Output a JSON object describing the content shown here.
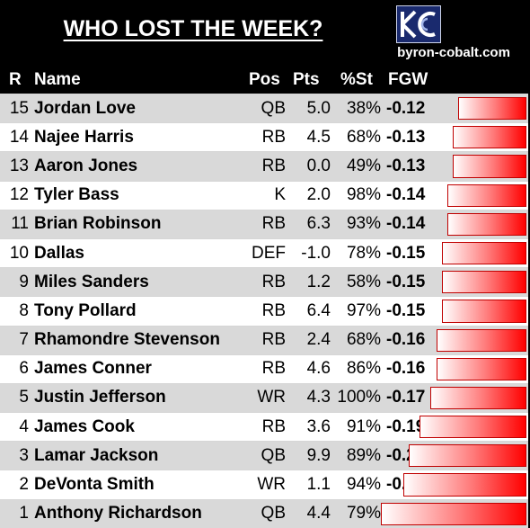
{
  "title": "WHO LOST THE WEEK?",
  "site": "byron-cobalt.com",
  "logo_icon": "kc-monogram-icon",
  "colors": {
    "bar_start": "#ffffff",
    "bar_end": "#ff0000",
    "bar_border": "#c00000"
  },
  "headers": {
    "rank": "R",
    "name": "Name",
    "pos": "Pos",
    "pts": "Pts",
    "pct": "%St",
    "fgw": "FGW"
  },
  "chart_data": {
    "type": "table",
    "columns": [
      "R",
      "Name",
      "Pos",
      "Pts",
      "%St",
      "FGW"
    ],
    "rows": [
      {
        "rank": "15",
        "name": "Jordan Love",
        "pos": "QB",
        "pts": "5.0",
        "pct": "38%",
        "fgw": "-0.12",
        "value": -0.12
      },
      {
        "rank": "14",
        "name": "Najee Harris",
        "pos": "RB",
        "pts": "4.5",
        "pct": "68%",
        "fgw": "-0.13",
        "value": -0.13
      },
      {
        "rank": "13",
        "name": "Aaron Jones",
        "pos": "RB",
        "pts": "0.0",
        "pct": "49%",
        "fgw": "-0.13",
        "value": -0.13
      },
      {
        "rank": "12",
        "name": "Tyler Bass",
        "pos": "K",
        "pts": "2.0",
        "pct": "98%",
        "fgw": "-0.14",
        "value": -0.14
      },
      {
        "rank": "11",
        "name": "Brian Robinson",
        "pos": "RB",
        "pts": "6.3",
        "pct": "93%",
        "fgw": "-0.14",
        "value": -0.14
      },
      {
        "rank": "10",
        "name": "Dallas",
        "pos": "DEF",
        "pts": "-1.0",
        "pct": "78%",
        "fgw": "-0.15",
        "value": -0.15
      },
      {
        "rank": "9",
        "name": "Miles Sanders",
        "pos": "RB",
        "pts": "1.2",
        "pct": "58%",
        "fgw": "-0.15",
        "value": -0.15
      },
      {
        "rank": "8",
        "name": "Tony Pollard",
        "pos": "RB",
        "pts": "6.4",
        "pct": "97%",
        "fgw": "-0.15",
        "value": -0.15
      },
      {
        "rank": "7",
        "name": "Rhamondre Stevenson",
        "pos": "RB",
        "pts": "2.4",
        "pct": "68%",
        "fgw": "-0.16",
        "value": -0.16
      },
      {
        "rank": "6",
        "name": "James Conner",
        "pos": "RB",
        "pts": "4.6",
        "pct": "86%",
        "fgw": "-0.16",
        "value": -0.16
      },
      {
        "rank": "5",
        "name": "Justin Jefferson",
        "pos": "WR",
        "pts": "4.3",
        "pct": "100%",
        "fgw": "-0.17",
        "value": -0.17
      },
      {
        "rank": "4",
        "name": "James Cook",
        "pos": "RB",
        "pts": "3.6",
        "pct": "91%",
        "fgw": "-0.19",
        "value": -0.19
      },
      {
        "rank": "3",
        "name": "Lamar Jackson",
        "pos": "QB",
        "pts": "9.9",
        "pct": "89%",
        "fgw": "-0.21",
        "value": -0.21
      },
      {
        "rank": "2",
        "name": "DeVonta Smith",
        "pos": "WR",
        "pts": "1.1",
        "pct": "94%",
        "fgw": "-0.22",
        "value": -0.22
      },
      {
        "rank": "1",
        "name": "Anthony Richardson",
        "pos": "QB",
        "pts": "4.4",
        "pct": "79%",
        "fgw": "-0.26",
        "value": -0.26
      }
    ]
  }
}
